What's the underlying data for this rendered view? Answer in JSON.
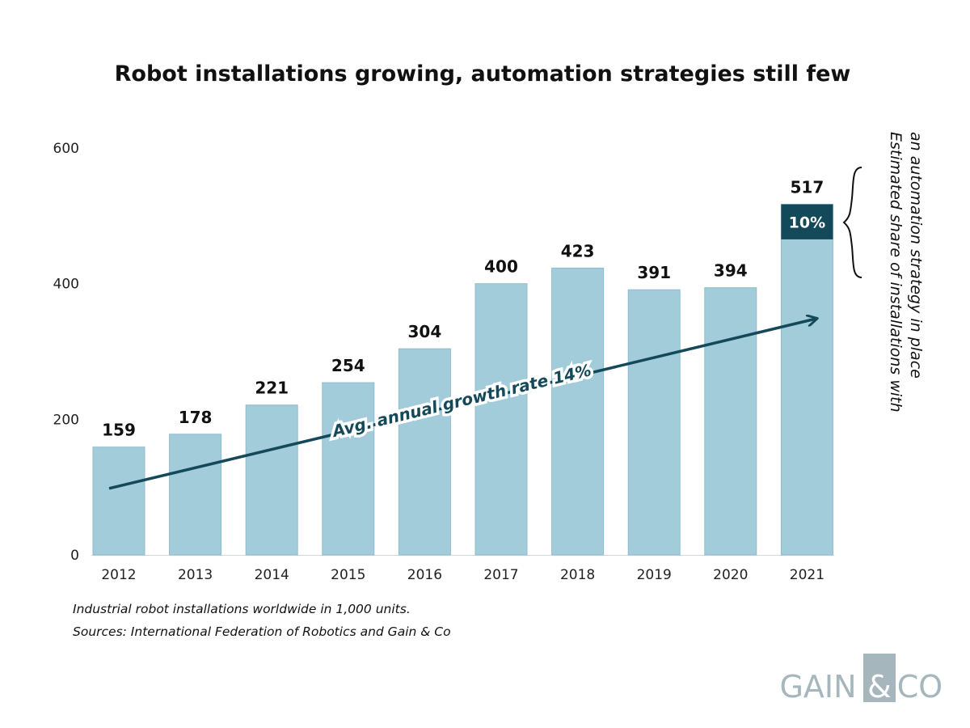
{
  "chart_data": {
    "type": "bar",
    "title": "Robot installations growing, automation strategies still few",
    "categories": [
      "2012",
      "2013",
      "2014",
      "2015",
      "2016",
      "2017",
      "2018",
      "2019",
      "2020",
      "2021"
    ],
    "values": [
      159,
      178,
      221,
      254,
      304,
      400,
      423,
      391,
      394,
      517
    ],
    "value_labels": [
      "159",
      "178",
      "221",
      "254",
      "304",
      "400",
      "423",
      "391",
      "394",
      "517"
    ],
    "ylim": [
      0,
      600
    ],
    "yticks": [
      0,
      200,
      400,
      600
    ],
    "ytick_labels": [
      "0",
      "200",
      "400",
      "600"
    ],
    "grid": false,
    "highlight": {
      "category": "2021",
      "share_value": 0.1,
      "label": "10%"
    },
    "trend": {
      "label": "Avg. annual growth rate 14%",
      "from": {
        "x": "2012",
        "y": 98
      },
      "to": {
        "x": "2021",
        "y": 348
      }
    },
    "side_note_lines": [
      "Estimated share of installations with",
      "an automation strategy in place"
    ],
    "footnotes": [
      "Industrial robot installations worldwide in 1,000 units.",
      "Sources: International Federation of Robotics and Gain & Co"
    ],
    "colors": {
      "bar": "#a3ccdb",
      "bar_stroke": "#8fbccd",
      "highlight": "#14495a",
      "arrow": "#14495a",
      "text": "#111111",
      "axis": "#222222"
    }
  },
  "logo": {
    "left": "GAIN",
    "middle": "&",
    "right": "CO"
  }
}
